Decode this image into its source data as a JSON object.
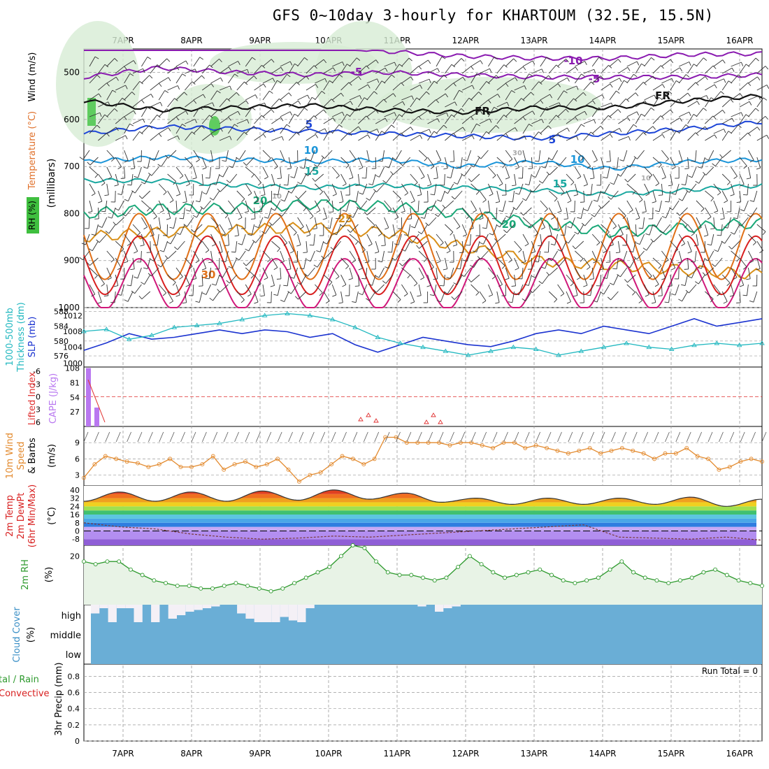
{
  "title": "GFS 0~10day 3-hourly for KHARTOUM (32.5E, 15.5N)",
  "colors": {
    "frame": "#000000",
    "grid": "#9a9a9a",
    "barb": "#333333",
    "purple": "#8a1ab0",
    "black_line": "#111111",
    "blue": "#1e46d8",
    "lightblue": "#1b95d9",
    "teal": "#1aa8a0",
    "green": "#1aa878",
    "orange": "#d8901a",
    "darkorange": "#e07018",
    "red": "#d82020",
    "magenta": "#d0187a",
    "rh_shade": "#d7ecd5",
    "thickness": "#1b33d0",
    "slp": "#22b8c0",
    "cape": "#b978f0",
    "li": "#e03030",
    "wind10": "#e38a2e",
    "rh2m": "#2e9a2e",
    "rh2m_fill": "#e8f3e6",
    "cloud": "#6aaed6",
    "cloud_blank": "#f4f0f6"
  },
  "dates": [
    "7APR",
    "8APR",
    "9APR",
    "10APR",
    "11APR",
    "12APR",
    "13APR",
    "14APR",
    "15APR",
    "16APR"
  ],
  "panel_labels": {
    "upper": {
      "wind": "Wind (m/s)",
      "temp": "Temperature (°C)",
      "rh": "RH (%)",
      "pressure": "(millibars)"
    },
    "thickness": {
      "label1": "1000-500mb",
      "label2": "Thickness (dm)",
      "label3": "SLP (mb)"
    },
    "cape": {
      "label1": "Lifted Index",
      "label2": "CAPE (J/kg)"
    },
    "wind10": {
      "label1": "10m Wind",
      "label2": "Speed",
      "label3": "& Barbs",
      "unit": "(m/s)"
    },
    "temp2m": {
      "label1": "2m Temp",
      "label2": "2m DewPt",
      "label3": "(6hr Min/Max)",
      "unit": "(°C)"
    },
    "rh2m": {
      "label1": "2m RH",
      "unit": "(%)"
    },
    "cloud": {
      "label1": "Cloud Cover",
      "unit": "(%)"
    },
    "precip": {
      "label1": "tal / Rain",
      "label2": "Convective",
      "label3": "3hr Precip (mm)",
      "run_total": "Run Total = 0"
    }
  },
  "chart_data": [
    {
      "type": "line",
      "panel": "upper-air",
      "y_axis": "pressure (mb)",
      "yticks": [
        500,
        600,
        700,
        800,
        900,
        1000
      ],
      "ylim": [
        1000,
        450
      ],
      "contour_labels": [
        "-10",
        "-5",
        "-5",
        "FR",
        "FR",
        "5",
        "5",
        "10",
        "10",
        "15",
        "15",
        "20",
        "20",
        "25",
        "30",
        "30",
        "10",
        "10"
      ],
      "isotherms_mb": [
        {
          "name": "-10",
          "values": [
            410,
            420,
            430,
            440,
            455,
            465,
            470,
            470,
            462,
            460
          ]
        },
        {
          "name": "-5",
          "values": [
            510,
            490,
            500,
            505,
            500,
            505,
            510,
            510,
            510,
            505
          ]
        },
        {
          "name": "FR",
          "values": [
            560,
            580,
            575,
            570,
            580,
            585,
            575,
            575,
            560,
            550
          ]
        },
        {
          "name": "5",
          "values": [
            630,
            615,
            620,
            625,
            630,
            635,
            640,
            630,
            620,
            605
          ]
        },
        {
          "name": "10",
          "values": [
            690,
            680,
            685,
            690,
            685,
            700,
            690,
            705,
            690,
            685
          ]
        },
        {
          "name": "15",
          "values": [
            730,
            730,
            740,
            745,
            740,
            745,
            750,
            760,
            750,
            740
          ]
        },
        {
          "name": "20",
          "values": [
            800,
            790,
            790,
            780,
            785,
            800,
            820,
            840,
            830,
            820
          ]
        },
        {
          "name": "25",
          "values": [
            850,
            840,
            835,
            830,
            840,
            870,
            900,
            910,
            920,
            930
          ]
        }
      ]
    },
    {
      "type": "line",
      "panel": "thickness-slp",
      "thickness_ticks": [
        576,
        580,
        584,
        588
      ],
      "slp_ticks": [
        1000,
        1004,
        1008,
        1012
      ],
      "series": [
        {
          "name": "1000-500mb Thickness (dm)",
          "values": [
            577.5,
            579.5,
            582,
            580.5,
            581,
            582,
            583,
            582,
            583,
            582.5,
            581,
            582,
            579,
            577,
            579,
            581,
            580,
            579,
            578.5,
            580,
            582,
            583,
            582,
            584,
            583,
            582,
            584,
            586,
            584,
            585,
            586
          ]
        },
        {
          "name": "SLP (mb)",
          "values": [
            1008,
            1008.5,
            1006,
            1007,
            1009,
            1009.5,
            1010,
            1011,
            1012,
            1012.5,
            1012,
            1011,
            1009,
            1006.5,
            1005,
            1004,
            1003,
            1002,
            1003,
            1004,
            1003.5,
            1002,
            1003,
            1004,
            1005,
            1004,
            1003.5,
            1004.5,
            1005,
            1004.5,
            1005
          ]
        }
      ]
    },
    {
      "type": "bar",
      "panel": "cape-li",
      "cape_ticks": [
        27,
        54,
        81,
        108
      ],
      "li_ticks": [
        -6,
        -3,
        0,
        3,
        6
      ],
      "series": [
        {
          "name": "CAPE (J/kg)",
          "values": [
            108,
            35
          ]
        },
        {
          "name": "Lifted Index",
          "values": [
            -4,
            1,
            6
          ]
        }
      ]
    },
    {
      "type": "line",
      "panel": "wind10",
      "yticks": [
        3,
        6,
        9
      ],
      "series": [
        {
          "name": "10m Wind Speed",
          "values": [
            2.5,
            5,
            6.5,
            6,
            5.5,
            5.2,
            4.5,
            5,
            6,
            4.5,
            4.5,
            5,
            6.5,
            4,
            5,
            5.5,
            4.5,
            5,
            6,
            4,
            1.8,
            3,
            3.5,
            5,
            6.5,
            6,
            5,
            6,
            10,
            10,
            9,
            9,
            9,
            9,
            8.5,
            9,
            9,
            8.5,
            8,
            9,
            9,
            8,
            8.5,
            8,
            7.5,
            7,
            7.5,
            8,
            7,
            7.5,
            8,
            7.5,
            7,
            6,
            7,
            7,
            8,
            6.5,
            6,
            4,
            4.5,
            5.5,
            6,
            5.5
          ]
        }
      ]
    },
    {
      "type": "line",
      "panel": "temp2m",
      "yticks": [
        -8,
        0,
        8,
        16,
        24,
        32,
        40
      ],
      "series": [
        {
          "name": "2m Temp max",
          "values": [
            29,
            38,
            29,
            38,
            29,
            39,
            30,
            40,
            31,
            37,
            28,
            32,
            26,
            32,
            26,
            32,
            26,
            33,
            24,
            31
          ]
        },
        {
          "name": "2m DewPt",
          "values": [
            8,
            4,
            2,
            -3,
            -6,
            -8,
            -7,
            -5,
            -6,
            -4,
            -2,
            0,
            2,
            4,
            6,
            -6,
            -7,
            -8,
            -6,
            -9
          ]
        }
      ]
    },
    {
      "type": "line",
      "panel": "rh2m",
      "yticks": [
        20
      ],
      "series": [
        {
          "name": "2m RH",
          "values": [
            18,
            17,
            18,
            18,
            15,
            13,
            11,
            10,
            9,
            9,
            8,
            8,
            9,
            10,
            9,
            8,
            7,
            8,
            10,
            12,
            14,
            16,
            20,
            24,
            23,
            18,
            14,
            13,
            13,
            12,
            11,
            12,
            16,
            20,
            17,
            14,
            12,
            13,
            14,
            15,
            13,
            11,
            10,
            11,
            12,
            15,
            18,
            14,
            12,
            11,
            10,
            11,
            12,
            14,
            15,
            13,
            11,
            10,
            9
          ]
        }
      ]
    },
    {
      "type": "bar",
      "panel": "cloud",
      "yticks": [
        "high",
        "middle",
        "low"
      ],
      "series": [
        {
          "name": "high cloud clear fraction",
          "values": [
            0.5,
            0.2,
            1,
            0.2,
            0.2,
            1,
            0,
            1,
            0,
            0.8,
            0.6,
            0.4,
            0.3,
            0.2,
            0.1,
            0,
            0,
            0.5,
            0.8,
            1,
            1,
            1,
            0.7,
            0.9,
            1,
            0.2,
            0,
            0,
            0,
            0,
            0,
            0,
            0,
            0,
            0,
            0,
            0,
            0,
            0.1,
            0,
            0.4,
            0.2,
            0.1,
            0
          ]
        }
      ]
    },
    {
      "type": "bar",
      "panel": "precip",
      "yticks": [
        0,
        0.2,
        0.4,
        0.6,
        0.8
      ],
      "series": [
        {
          "name": "3hr Precip (mm)",
          "values": [
            0
          ]
        }
      ]
    }
  ]
}
